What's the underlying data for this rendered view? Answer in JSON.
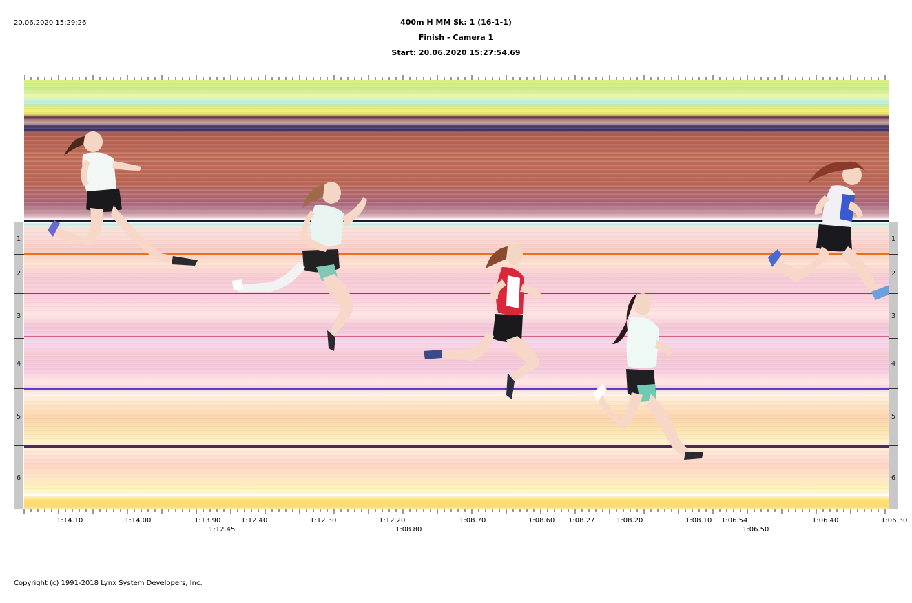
{
  "timestamp": "20.06.2020 15:29:26",
  "header": {
    "event": "400m H MM   Sk: 1 (16-1-1)",
    "camera": "Finish - Camera 1",
    "start": "Start: 20.06.2020 15:27:54.69"
  },
  "lanes": [
    "1",
    "2",
    "3",
    "4",
    "5",
    "6"
  ],
  "time_labels_row1": [
    "1:14.10",
    "1:14.00",
    "1:13.90",
    "1:12.40",
    "1:12.30",
    "1:12.20",
    "1:08.70",
    "1:08.60",
    "1:08.27",
    "1:08.20",
    "1:08.10",
    "1:06.54",
    "1:06.40",
    "1:06.30"
  ],
  "time_labels_row2": [
    "1:12.45",
    "1:08.80",
    "1:06.50"
  ],
  "copyright": "Copyright (c) 1991-2018 Lynx System Developers, Inc.",
  "colors": {
    "lane_line_orange": "#e9701c",
    "lane_line_red": "#c8283a",
    "lane_line_violet": "#5a3ad0",
    "lane_line_dark": "#4a2a5a",
    "panel": "#c8c8c8"
  }
}
